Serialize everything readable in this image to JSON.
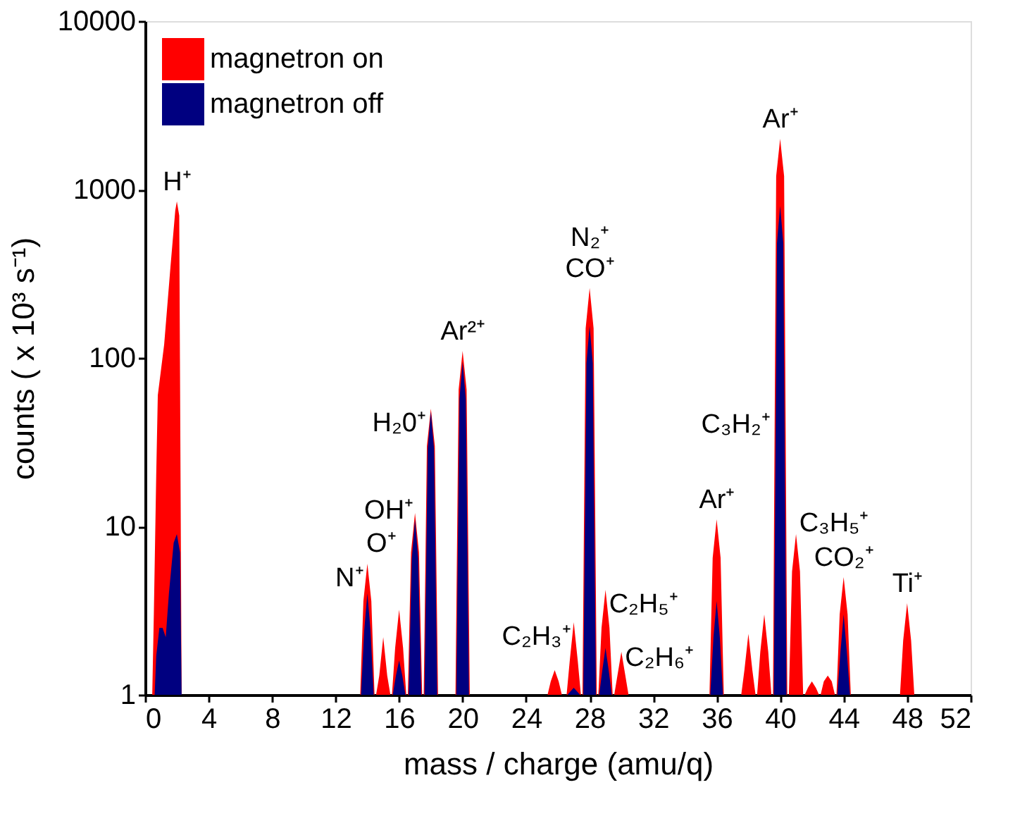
{
  "chart_data": {
    "type": "area",
    "xlabel": "mass / charge (amu/q)",
    "ylabel": "counts ( x 10³ s⁻¹)",
    "log": "y",
    "grid": false,
    "legend": "top left",
    "xlim": [
      0,
      52
    ],
    "xticks": [
      0,
      4,
      8,
      12,
      16,
      20,
      24,
      28,
      32,
      36,
      40,
      44,
      48,
      52
    ],
    "ylim": [
      1,
      10000
    ],
    "yticks": [
      1,
      10,
      100,
      1000,
      10000
    ],
    "series": [
      {
        "name": "magnetron on",
        "color": "#ff0000",
        "x": [
          0,
          0.45,
          0.55,
          0.7,
          0.8,
          1.2,
          1.6,
          1.9,
          2.0,
          2.15,
          2.3,
          13.55,
          13.75,
          14,
          14.25,
          14.45,
          14.55,
          14.75,
          15,
          15.25,
          15.45,
          15.55,
          15.75,
          16,
          16.25,
          16.45,
          16.55,
          16.75,
          17,
          17.25,
          17.45,
          17.55,
          17.75,
          18,
          18.25,
          18.45,
          19.55,
          19.75,
          20,
          20.25,
          20.45,
          25.35,
          25.55,
          25.8,
          26.05,
          26.25,
          26.55,
          26.75,
          27,
          27.25,
          27.45,
          27.55,
          27.75,
          28,
          28.25,
          28.45,
          28.55,
          28.75,
          29,
          29.25,
          29.45,
          29.55,
          29.75,
          30,
          30.25,
          30.45,
          35.55,
          35.75,
          36,
          36.25,
          36.45,
          37.55,
          37.75,
          38,
          38.25,
          38.45,
          38.55,
          38.75,
          39,
          39.25,
          39.45,
          39.55,
          39.75,
          40,
          40.25,
          40.45,
          40.55,
          40.75,
          41,
          41.25,
          41.45,
          41.55,
          41.75,
          42,
          42.25,
          42.45,
          42.55,
          42.75,
          43,
          43.25,
          43.45,
          43.55,
          43.75,
          44,
          44.25,
          44.45,
          47.55,
          47.75,
          48,
          48.25,
          48.45,
          52
        ],
        "values": [
          1,
          1,
          3,
          20,
          60,
          120,
          350,
          750,
          850,
          700,
          1,
          1,
          3.6,
          6,
          3.6,
          1,
          1,
          1.3,
          2.2,
          1.3,
          1,
          1,
          1.9,
          3.2,
          1.9,
          1,
          1,
          7,
          12,
          7,
          1,
          1,
          30,
          50,
          30,
          1,
          1,
          65,
          110,
          65,
          1,
          1,
          1.2,
          1.4,
          1.2,
          1,
          1,
          1.6,
          2.7,
          1.6,
          1,
          1,
          150,
          260,
          150,
          1,
          1,
          2.5,
          4.2,
          2.5,
          1,
          1,
          1.3,
          1.8,
          1.3,
          1,
          1,
          6.5,
          11,
          6.5,
          1,
          1,
          1.4,
          2.3,
          1.4,
          1,
          1,
          1.8,
          3,
          1.8,
          1,
          1,
          1200,
          2000,
          1200,
          1,
          1,
          5.4,
          9,
          5.4,
          1,
          1,
          1.1,
          1.2,
          1.1,
          1,
          1,
          1.2,
          1.3,
          1.2,
          1,
          1,
          3,
          5,
          3,
          1,
          1,
          2.1,
          3.5,
          2.1,
          1,
          1
        ]
      },
      {
        "name": "magnetron off",
        "color": "#000080",
        "x": [
          0,
          0.6,
          0.7,
          0.9,
          1.1,
          1.3,
          1.5,
          1.8,
          2.0,
          2.2,
          2.3,
          13.6,
          13.8,
          14,
          14.2,
          14.4,
          15.6,
          15.8,
          16,
          16.2,
          16.4,
          16.6,
          16.8,
          17,
          17.2,
          17.4,
          17.6,
          17.8,
          18,
          18.2,
          18.4,
          19.6,
          19.8,
          20,
          20.2,
          20.4,
          26.6,
          26.8,
          27,
          27.2,
          27.4,
          27.6,
          27.8,
          28,
          28.2,
          28.4,
          28.6,
          28.8,
          29,
          29.2,
          29.4,
          35.6,
          35.8,
          36,
          36.2,
          36.4,
          39.6,
          39.8,
          40,
          40.2,
          40.4,
          43.6,
          43.8,
          44,
          44.2,
          44.4,
          52
        ],
        "values": [
          1,
          1,
          1.7,
          2.5,
          2.5,
          2.2,
          4,
          8,
          9,
          7,
          1,
          1,
          2.4,
          4,
          2.4,
          1,
          1,
          1.3,
          1.6,
          1.3,
          1,
          1,
          6.5,
          11,
          6.5,
          1,
          1,
          29,
          48,
          29,
          1,
          1,
          57,
          95,
          57,
          1,
          1,
          1.05,
          1.1,
          1.05,
          1,
          1,
          93,
          155,
          93,
          1,
          1,
          1.4,
          1.9,
          1.4,
          1,
          1,
          2.2,
          3.6,
          2.2,
          1,
          1,
          480,
          800,
          480,
          1,
          1,
          1.8,
          3,
          1.8,
          1,
          1
        ]
      }
    ],
    "annotations": [
      {
        "text": "H⁺",
        "x": 2,
        "y": 850
      },
      {
        "text": "N⁺",
        "x": 14,
        "y": 6
      },
      {
        "text": "O⁺",
        "x": 16,
        "y": 3.2
      },
      {
        "text": "OH⁺",
        "x": 17,
        "y": 12
      },
      {
        "text": "H₂0⁺",
        "x": 18,
        "y": 50
      },
      {
        "text": "Ar²⁺",
        "x": 20,
        "y": 110
      },
      {
        "text": "N₂⁺\nCO⁺",
        "x": 28,
        "y": 260
      },
      {
        "text": "C₂H₃⁺",
        "x": 27,
        "y": 2.7
      },
      {
        "text": "C₂H₅⁺",
        "x": 29,
        "y": 4.2
      },
      {
        "text": "C₂H₆⁺",
        "x": 30,
        "y": 1.8
      },
      {
        "text": "Ar⁺",
        "x": 36,
        "y": 11
      },
      {
        "text": "C₃H₂⁺",
        "x": 39.56,
        "y": 49
      },
      {
        "text": "Ar⁺",
        "x": 40,
        "y": 2000
      },
      {
        "text": "C₃H₅⁺",
        "x": 41,
        "y": 9
      },
      {
        "text": "CO₂⁺",
        "x": 44,
        "y": 5
      },
      {
        "text": "Ti⁺",
        "x": 48,
        "y": 3.5
      }
    ]
  }
}
